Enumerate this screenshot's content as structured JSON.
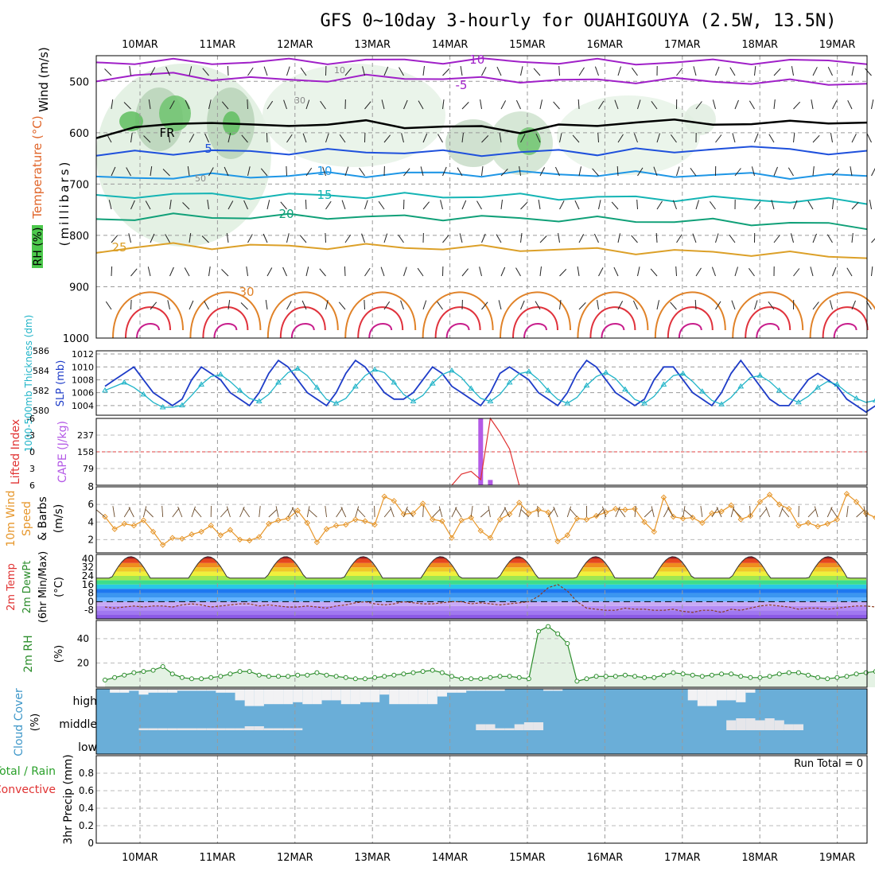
{
  "title": "GFS 0~10day 3-hourly for OUAHIGOUYA (2.5W, 13.5N)",
  "dates": [
    "10MAR",
    "11MAR",
    "12MAR",
    "13MAR",
    "14MAR",
    "15MAR",
    "16MAR",
    "17MAR",
    "18MAR",
    "19MAR"
  ],
  "run_total": "Run Total = 0",
  "chart_data": [
    {
      "type": "line",
      "panel": "upper-air",
      "ylabel": [
        "Wind (m/s)",
        "Temperature (°C)",
        "RH (%)",
        "(millibars)"
      ],
      "ylim": [
        1000,
        450
      ],
      "yticks": [
        500,
        600,
        700,
        800,
        900,
        1000
      ],
      "isotherm_labels": [
        "-10",
        "-5",
        "FR",
        "5",
        "10",
        "15",
        "20",
        "25",
        "30"
      ],
      "rh_labels": [
        "10",
        "30",
        "50"
      ],
      "isotherms": [
        {
          "name": "-10",
          "color": "#a020c8",
          "p": [
            463,
            462,
            462,
            463,
            462,
            461,
            461,
            460,
            460,
            460,
            460,
            461,
            462,
            462,
            463,
            463,
            462,
            461,
            461,
            461,
            461
          ]
        },
        {
          "name": "-5",
          "color": "#a020c8",
          "p": [
            495,
            489,
            487,
            492,
            496,
            497,
            496,
            493,
            492,
            494,
            497,
            497,
            499,
            499,
            498,
            498,
            500,
            501,
            502,
            503,
            504
          ]
        },
        {
          "name": "FR",
          "color": "#000000",
          "p": [
            605,
            595,
            581,
            578,
            590,
            582,
            585,
            580,
            585,
            592,
            588,
            596,
            590,
            584,
            578,
            580,
            579,
            585,
            580,
            576,
            585
          ]
        },
        {
          "name": "5",
          "color": "#1e50dc",
          "p": [
            644,
            640,
            637,
            637,
            638,
            637,
            637,
            637,
            637,
            640,
            641,
            638,
            638,
            638,
            634,
            640,
            627,
            633,
            629,
            640,
            641
          ]
        },
        {
          "name": "10",
          "color": "#1e96e6",
          "p": [
            690,
            688,
            685,
            685,
            684,
            683,
            682,
            681,
            680,
            680,
            680,
            680,
            680,
            681,
            681,
            682,
            682,
            683,
            684,
            684,
            686
          ]
        },
        {
          "name": "15",
          "color": "#14b4b4",
          "p": [
            727,
            722,
            720,
            722,
            723,
            723,
            722,
            723,
            723,
            723,
            724,
            724,
            725,
            727,
            727,
            728,
            729,
            730,
            732,
            733,
            735
          ]
        },
        {
          "name": "20",
          "color": "#10a078",
          "p": [
            770,
            765,
            763,
            764,
            764,
            764,
            763,
            764,
            765,
            765,
            766,
            767,
            768,
            769,
            771,
            772,
            773,
            775,
            777,
            779,
            782
          ]
        },
        {
          "name": "25",
          "color": "#dca028",
          "p": [
            830,
            823,
            820,
            821,
            821,
            822,
            821,
            822,
            823,
            824,
            825,
            826,
            828,
            829,
            831,
            832,
            833,
            835,
            837,
            839,
            842
          ]
        }
      ]
    },
    {
      "type": "line",
      "panel": "slp-thickness",
      "ylabel_left": "1000-500mb Thickness (dm)",
      "ylabel_right": "SLP (mb)",
      "ylim_left": [
        579.5,
        586
      ],
      "ylim_right": [
        1002.5,
        1012.5
      ],
      "yticks_left": [
        580,
        582,
        584,
        586
      ],
      "yticks_right": [
        1004,
        1006,
        1008,
        1010,
        1012
      ],
      "series": [
        {
          "name": "SLP",
          "color": "#1e3cc8",
          "values": [
            1007,
            1008,
            1009,
            1010,
            1008,
            1006,
            1005,
            1004,
            1005,
            1008,
            1010,
            1009,
            1008,
            1006,
            1005,
            1004,
            1006,
            1009,
            1011,
            1010,
            1008,
            1006,
            1005,
            1004,
            1006,
            1009,
            1011,
            1010,
            1008,
            1006,
            1005,
            1005,
            1006,
            1008,
            1010,
            1009,
            1007,
            1006,
            1005,
            1004,
            1006,
            1009,
            1010,
            1009,
            1008,
            1006,
            1005,
            1004,
            1006,
            1009,
            1011,
            1010,
            1008,
            1006,
            1005,
            1004,
            1005,
            1008,
            1010,
            1010,
            1008,
            1006,
            1005,
            1004,
            1006,
            1009,
            1011,
            1009,
            1007,
            1005,
            1004,
            1004,
            1006,
            1008,
            1009,
            1008,
            1007,
            1005,
            1004,
            1003,
            1004,
            1006,
            1007
          ]
        },
        {
          "name": "Thickness",
          "color": "#20b4c8",
          "values": [
            582.0,
            582.4,
            582.8,
            582.3,
            581.6,
            580.8,
            580.3,
            580.3,
            580.5,
            581.5,
            582.6,
            583.4,
            583.6,
            582.9,
            582.0,
            581.2,
            580.9,
            581.6,
            582.8,
            583.8,
            584.2,
            583.5,
            582.3,
            581.1,
            580.7,
            581.2,
            582.4,
            583.5,
            584.1,
            583.8,
            582.8,
            581.6,
            580.9,
            581.5,
            582.7,
            583.6,
            584.0,
            583.3,
            582.2,
            581.2,
            580.9,
            581.6,
            582.8,
            583.7,
            583.9,
            583.1,
            582.0,
            581.1,
            580.7,
            581.3,
            582.5,
            583.4,
            583.8,
            583.2,
            582.1,
            581.1,
            580.7,
            581.4,
            582.6,
            583.5,
            583.7,
            582.9,
            581.9,
            581.0,
            580.6,
            581.3,
            582.4,
            583.3,
            583.5,
            582.9,
            582.0,
            581.2,
            580.8,
            581.4,
            582.3,
            582.9,
            582.6,
            581.8,
            581.2,
            580.8,
            581.0,
            580.4,
            580.2
          ]
        }
      ]
    },
    {
      "type": "bar",
      "panel": "cape-lifted-index",
      "ylabel_left": "Lifted Index",
      "ylabel_right": "CAPE (J/kg)",
      "yticks_left": [
        "-6",
        "-3",
        "0",
        "3",
        "6"
      ],
      "yticks_right": [
        "79",
        "158",
        "237"
      ],
      "ylim_cape": [
        0,
        316
      ],
      "cape_steps": [
        39,
        40,
        41,
        42
      ],
      "cape_values": [
        316,
        25,
        0,
        0
      ],
      "li_steps": [
        36,
        37,
        38,
        39,
        40,
        41,
        42,
        43
      ],
      "li_values": [
        6,
        4,
        3.5,
        5,
        -6,
        -3.5,
        -0.5,
        6
      ]
    },
    {
      "type": "line",
      "panel": "10m-wind",
      "ylabel": [
        "10m Wind",
        "Speed",
        "& Barbs",
        "(m/s)"
      ],
      "ylim": [
        0.5,
        8
      ],
      "yticks": [
        2,
        4,
        6,
        8
      ],
      "series": [
        {
          "name": "speed",
          "color": "#e6962a",
          "values": [
            4.6,
            3.2,
            3.8,
            3.6,
            4.2,
            2.9,
            1.4,
            2.2,
            2.1,
            2.6,
            2.9,
            3.6,
            2.5,
            3.1,
            2.0,
            1.9,
            2.3,
            3.8,
            4.2,
            4.4,
            5.3,
            3.9,
            1.7,
            3.2,
            3.6,
            3.7,
            4.3,
            4.1,
            3.7,
            6.9,
            6.4,
            4.9,
            5.0,
            6.1,
            4.3,
            4.1,
            2.2,
            4.2,
            4.5,
            3.0,
            2.2,
            4.3,
            4.9,
            6.2,
            5.0,
            5.4,
            5.1,
            1.8,
            2.5,
            4.4,
            4.3,
            4.7,
            5.1,
            5.5,
            5.4,
            5.5,
            4.0,
            2.9,
            6.8,
            4.6,
            4.4,
            4.5,
            3.9,
            5.0,
            5.2,
            5.9,
            4.3,
            4.7,
            6.3,
            7.1,
            6.0,
            5.5,
            3.6,
            3.9,
            3.5,
            3.8,
            4.3,
            7.2,
            6.3,
            5.0,
            4.5,
            4.9,
            4.3
          ]
        }
      ]
    },
    {
      "type": "area",
      "panel": "2m-temperature",
      "ylabel": [
        "2m Temp",
        "2m DewPt",
        "(6hr Min/Max)",
        "(°C)"
      ],
      "ylim": [
        -16,
        44
      ],
      "yticks": [
        -8,
        0,
        8,
        16,
        24,
        32,
        40
      ],
      "temp_min": 22,
      "temp_max": 42,
      "dewpoint": [
        -5,
        -6,
        -5,
        -4,
        -5,
        -4,
        -4,
        -5,
        -3,
        -2,
        -3,
        -5,
        -4,
        -3,
        -2,
        -2,
        -4,
        -3,
        -4,
        -5,
        -5,
        -4,
        -5,
        -6,
        -4,
        -3,
        -1,
        0,
        -2,
        -3,
        -2,
        0,
        -1,
        -2,
        -2,
        -1,
        0,
        0,
        -2,
        -1,
        -2,
        -3,
        -2,
        -1,
        0,
        5,
        13,
        16,
        10,
        0,
        -6,
        -7,
        -8,
        -8,
        -6,
        -7,
        -7,
        -8,
        -8,
        -7,
        -9,
        -10,
        -8,
        -8,
        -10,
        -7,
        -8,
        -6,
        -4,
        -3,
        -4,
        -5,
        -7,
        -6,
        -6,
        -7,
        -6,
        -5,
        -4,
        -4,
        -5,
        -4,
        -3
      ]
    },
    {
      "type": "area",
      "panel": "2m-rh",
      "ylabel": [
        "2m RH",
        "(%)"
      ],
      "ylim": [
        0,
        55
      ],
      "yticks": [
        20,
        40
      ],
      "series": [
        {
          "name": "RH",
          "color": "#2a8c2a",
          "values": [
            6,
            8,
            10,
            12,
            13,
            14,
            17,
            11,
            8,
            7,
            7,
            8,
            9,
            11,
            13,
            13,
            10,
            9,
            9,
            9,
            10,
            10,
            12,
            10,
            9,
            8,
            7,
            7,
            8,
            9,
            10,
            11,
            12,
            13,
            14,
            12,
            9,
            7,
            7,
            7,
            8,
            9,
            9,
            8,
            7,
            46,
            50,
            44,
            36,
            5,
            7,
            9,
            9,
            9,
            10,
            9,
            8,
            8,
            10,
            12,
            11,
            10,
            9,
            10,
            11,
            11,
            9,
            8,
            8,
            9,
            11,
            12,
            12,
            10,
            8,
            7,
            8,
            9,
            11,
            12,
            13,
            14,
            16
          ]
        }
      ]
    },
    {
      "type": "heatmap",
      "panel": "cloud-cover",
      "ylabel": [
        "Cloud Cover",
        "(%)"
      ],
      "levels": [
        "high",
        "middle",
        "low"
      ],
      "high_start": 1,
      "high": [
        2,
        2,
        1,
        3,
        2,
        2,
        2,
        1,
        1,
        1,
        1,
        2,
        2,
        6,
        9,
        9,
        8,
        8,
        8,
        7,
        8,
        8,
        6,
        6,
        8,
        8,
        7,
        7,
        3,
        8,
        8,
        8,
        8,
        8,
        4,
        2,
        2,
        1,
        1,
        1,
        1,
        0,
        0,
        0,
        0,
        1,
        1,
        0,
        0,
        0,
        0,
        0,
        0,
        0,
        0,
        0,
        0,
        0,
        0,
        0,
        6,
        9,
        9,
        6,
        6,
        7,
        2,
        0,
        0,
        0,
        0,
        0,
        0,
        0,
        0,
        0,
        0,
        0,
        0,
        0,
        0
      ],
      "middle_start": 4,
      "middle": [
        1,
        1,
        1,
        1,
        1,
        1,
        1,
        1,
        1,
        1,
        1,
        2,
        2,
        1,
        1,
        1,
        1,
        0,
        0,
        0,
        0,
        0,
        0,
        0,
        0,
        0,
        0,
        0,
        0,
        0,
        0,
        0,
        0,
        0,
        0,
        3,
        3,
        1,
        1,
        3,
        4,
        4,
        0,
        0,
        0,
        0,
        0,
        0,
        0,
        0,
        0,
        0,
        0,
        0,
        0,
        0,
        0,
        0,
        0,
        0,
        0,
        5,
        6,
        6,
        5,
        6,
        5,
        3,
        3
      ]
    },
    {
      "type": "line",
      "panel": "precipitation",
      "ylabel": [
        "3hr Precip (mm)"
      ],
      "legend_total": "Total / Rain",
      "legend_conv": "Convective",
      "ylim": [
        0,
        1
      ],
      "yticks": [
        "0",
        "0.2",
        "0.4",
        "0.6",
        "0.8"
      ],
      "values": []
    }
  ]
}
